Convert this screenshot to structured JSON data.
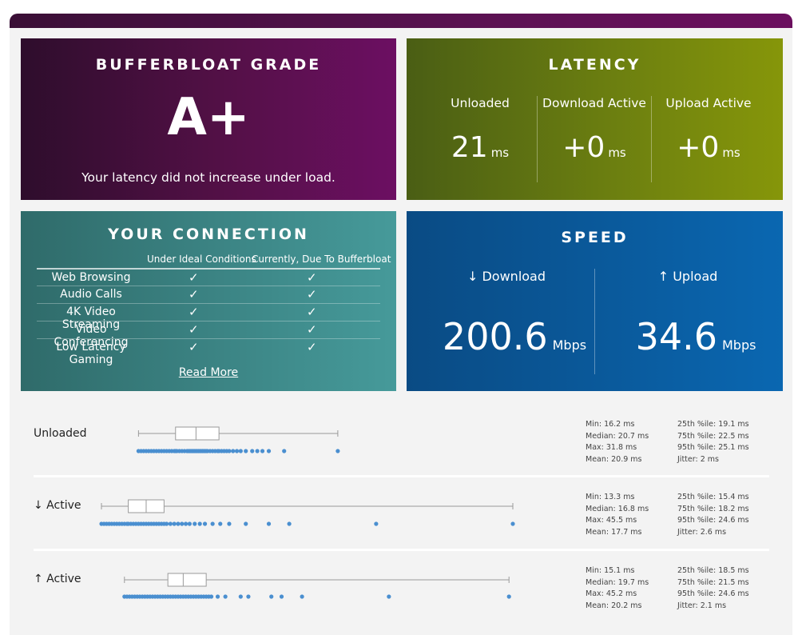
{
  "grade": {
    "title": "BUFFERBLOAT GRADE",
    "value": "A+",
    "message": "Your latency did not increase under load."
  },
  "latency": {
    "title": "LATENCY",
    "columns": [
      {
        "label": "Unloaded",
        "value": "21",
        "unit": "ms"
      },
      {
        "label": "Download Active",
        "value": "+0",
        "unit": "ms"
      },
      {
        "label": "Upload Active",
        "value": "+0",
        "unit": "ms"
      }
    ]
  },
  "connection": {
    "title": "YOUR CONNECTION",
    "header_ideal": "Under Ideal Conditions",
    "header_current": "Currently, Due To Bufferbloat",
    "rows": [
      {
        "name": "Web Browsing",
        "ideal": "✓",
        "current": "✓"
      },
      {
        "name": "Audio Calls",
        "ideal": "✓",
        "current": "✓"
      },
      {
        "name": "4K Video Streaming",
        "ideal": "✓",
        "current": "✓"
      },
      {
        "name": "Video Conferencing",
        "ideal": "✓",
        "current": "✓"
      },
      {
        "name": "Low Latency Gaming",
        "ideal": "✓",
        "current": "✓"
      }
    ],
    "read_more": "Read More"
  },
  "speed": {
    "title": "SPEED",
    "download_label": "↓ Download",
    "download_value": "200.6",
    "download_unit": "Mbps",
    "upload_label": "↑ Upload",
    "upload_value": "34.6",
    "upload_unit": "Mbps"
  },
  "rows": [
    {
      "label": "Unloaded",
      "min": 16.2,
      "q1": 19.1,
      "median": 20.7,
      "q3": 22.5,
      "max": 31.8,
      "points": [
        16.2,
        16.4,
        16.6,
        16.8,
        17.0,
        17.2,
        17.4,
        17.6,
        17.8,
        18.0,
        18.2,
        18.4,
        18.6,
        18.8,
        19.0,
        19.1,
        19.2,
        19.4,
        19.6,
        19.8,
        20.0,
        20.1,
        20.2,
        20.3,
        20.4,
        20.5,
        20.6,
        20.7,
        20.8,
        20.9,
        21.0,
        21.1,
        21.2,
        21.3,
        21.4,
        21.5,
        21.6,
        21.8,
        22.0,
        22.2,
        22.4,
        22.5,
        22.7,
        22.9,
        23.1,
        23.3,
        23.6,
        23.9,
        24.2,
        24.6,
        25.1,
        25.5,
        25.9,
        26.4,
        27.6,
        31.8
      ],
      "stats": [
        "Min: 16.2 ms",
        "Median: 20.7 ms",
        "Max: 31.8 ms",
        "Mean: 20.9 ms"
      ],
      "stats2": [
        "25th %ile: 19.1 ms",
        "75th %ile: 22.5 ms",
        "95th %ile: 25.1 ms",
        "Jitter: 2 ms"
      ]
    },
    {
      "label": "↓ Active",
      "min": 13.3,
      "q1": 15.4,
      "median": 16.8,
      "q3": 18.2,
      "max": 45.5,
      "points": [
        13.3,
        13.5,
        13.7,
        13.9,
        14.1,
        14.3,
        14.5,
        14.7,
        14.9,
        15.1,
        15.3,
        15.4,
        15.6,
        15.8,
        16.0,
        16.2,
        16.4,
        16.6,
        16.8,
        17.0,
        17.2,
        17.4,
        17.6,
        17.8,
        18.0,
        18.2,
        18.4,
        18.7,
        19.0,
        19.3,
        19.6,
        19.9,
        20.2,
        20.6,
        21.0,
        21.4,
        22.0,
        22.6,
        23.3,
        24.6,
        26.4,
        28.0,
        34.8,
        45.5
      ],
      "stats": [
        "Min: 13.3 ms",
        "Median: 16.8 ms",
        "Max: 45.5 ms",
        "Mean: 17.7 ms"
      ],
      "stats2": [
        "25th %ile: 15.4 ms",
        "75th %ile: 18.2 ms",
        "95th %ile: 24.6 ms",
        "Jitter: 2.6 ms"
      ]
    },
    {
      "label": "↑ Active",
      "min": 15.1,
      "q1": 18.5,
      "median": 19.7,
      "q3": 21.5,
      "max": 45.2,
      "points": [
        15.1,
        15.3,
        15.5,
        15.7,
        15.9,
        16.1,
        16.3,
        16.5,
        16.7,
        16.9,
        17.1,
        17.3,
        17.5,
        17.7,
        17.9,
        18.1,
        18.3,
        18.5,
        18.7,
        18.9,
        19.1,
        19.3,
        19.5,
        19.7,
        19.9,
        20.1,
        20.3,
        20.5,
        20.7,
        20.9,
        21.1,
        21.3,
        21.5,
        21.7,
        21.9,
        22.4,
        23.0,
        24.2,
        24.8,
        26.6,
        27.4,
        29.0,
        35.8,
        45.2
      ],
      "stats": [
        "Min: 15.1 ms",
        "Median: 19.7 ms",
        "Max: 45.2 ms",
        "Mean: 20.2 ms"
      ],
      "stats2": [
        "25th %ile: 18.5 ms",
        "75th %ile: 21.5 ms",
        "95th %ile: 24.6 ms",
        "Jitter: 2.1 ms"
      ]
    }
  ],
  "colors": {
    "dot": "#4a8fd0",
    "box": "#9a9a9a"
  }
}
